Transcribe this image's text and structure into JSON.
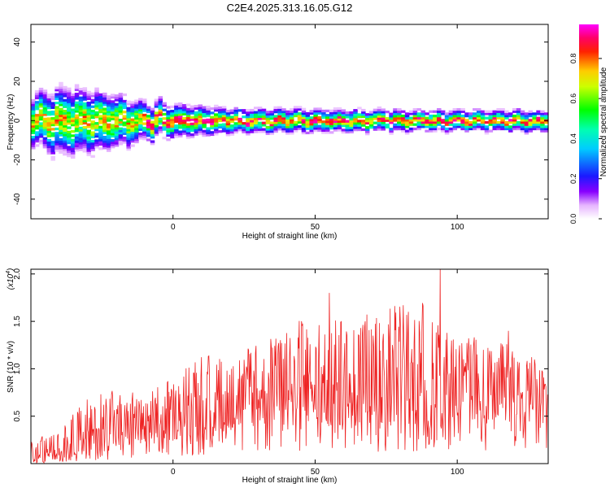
{
  "title": "C2E4.2025.313.16.05.G12",
  "colors": {
    "axis": "#000000",
    "snr_line": "#ee2222",
    "background": "#ffffff"
  },
  "chart_data": [
    {
      "type": "heatmap",
      "title": "C2E4.2025.313.16.05.G12",
      "xlabel": "Height of straight line (km)",
      "ylabel": "Frequency (Hz)",
      "xlim": [
        -50,
        132
      ],
      "ylim": [
        -50,
        49
      ],
      "xticks": [
        0,
        50,
        100
      ],
      "yticks": [
        -40,
        -20,
        0,
        20,
        40
      ],
      "grid": false,
      "colorbar": {
        "label": "Normalized spectral amplitude",
        "range": [
          0,
          0.97
        ],
        "ticks": [
          "0.0",
          "0.2",
          "0.4",
          "0.6",
          "0.8"
        ],
        "colormap": "rainbow (white-violet-blue-cyan-green-yellow-red-magenta)",
        "placement": "right"
      },
      "ridge": {
        "center_frequency_hz": 0,
        "spread_hz_at_x": [
          {
            "x": -50,
            "spread": 12
          },
          {
            "x": -40,
            "spread": 16
          },
          {
            "x": -25,
            "spread": 14
          },
          {
            "x": -10,
            "spread": 9
          },
          {
            "x": 20,
            "spread": 6
          },
          {
            "x": 80,
            "spread": 5
          },
          {
            "x": 132,
            "spread": 5
          }
        ],
        "peak_amplitude_min": 0.85
      }
    },
    {
      "type": "line",
      "xlabel": "Height of straight line (km)",
      "ylabel": "SNR (10 * v/v)",
      "y_multiplier_label": "(x10",
      "y_multiplier_exp": "4",
      "xlim": [
        -50,
        132
      ],
      "ylim": [
        0,
        2.05
      ],
      "xticks": [
        0,
        50,
        100
      ],
      "yticks": [
        "0.5",
        "1.0",
        "1.5",
        "2.0"
      ],
      "grid": false,
      "series": [
        {
          "color": "#ee2222",
          "envelope": [
            {
              "x": -50,
              "low": 0.0,
              "high": 0.25
            },
            {
              "x": -40,
              "low": 0.05,
              "high": 0.35
            },
            {
              "x": -30,
              "low": 0.1,
              "high": 0.7
            },
            {
              "x": -20,
              "low": 0.15,
              "high": 0.8
            },
            {
              "x": -10,
              "low": 0.2,
              "high": 0.75
            },
            {
              "x": 0,
              "low": 0.25,
              "high": 0.9
            },
            {
              "x": 10,
              "low": 0.3,
              "high": 1.15
            },
            {
              "x": 20,
              "low": 0.35,
              "high": 1.1
            },
            {
              "x": 30,
              "low": 0.4,
              "high": 1.3
            },
            {
              "x": 40,
              "low": 0.45,
              "high": 1.5
            },
            {
              "x": 50,
              "low": 0.4,
              "high": 1.55
            },
            {
              "x": 60,
              "low": 0.4,
              "high": 1.55
            },
            {
              "x": 70,
              "low": 0.4,
              "high": 1.6
            },
            {
              "x": 80,
              "low": 0.45,
              "high": 1.7
            },
            {
              "x": 90,
              "low": 0.35,
              "high": 1.7
            },
            {
              "x": 100,
              "low": 0.4,
              "high": 1.4
            },
            {
              "x": 110,
              "low": 0.45,
              "high": 1.3
            },
            {
              "x": 120,
              "low": 0.5,
              "high": 1.25
            },
            {
              "x": 132,
              "low": 0.55,
              "high": 1.1
            }
          ],
          "peaks": [
            {
              "x": 55,
              "y": 1.8
            },
            {
              "x": 81,
              "y": 1.67
            },
            {
              "x": 94,
              "y": 2.05
            },
            {
              "x": 118,
              "y": 1.4
            }
          ]
        }
      ]
    }
  ]
}
